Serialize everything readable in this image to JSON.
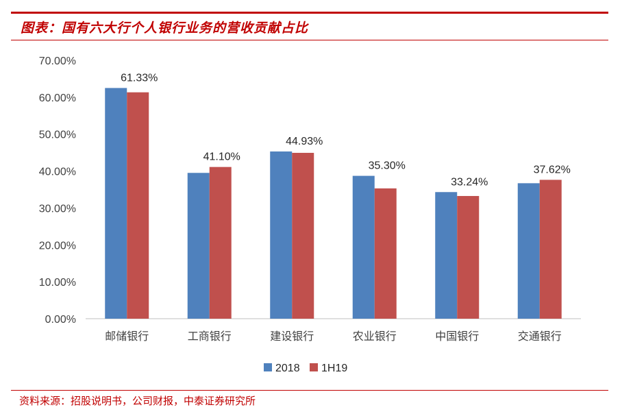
{
  "header": {
    "title": "图表：国有六大行个人银行业务的营收贡献占比"
  },
  "footer": {
    "source": "资料来源：招股说明书，公司财报，中泰证券研究所"
  },
  "chart_data": {
    "type": "bar",
    "categories": [
      "邮储银行",
      "工商银行",
      "建设银行",
      "农业银行",
      "中国银行",
      "交通银行"
    ],
    "series": [
      {
        "name": "2018",
        "color": "#4f81bd",
        "values": [
          62.5,
          39.5,
          45.3,
          38.7,
          34.3,
          36.7
        ]
      },
      {
        "name": "1H19",
        "color": "#c0504d",
        "values": [
          61.33,
          41.1,
          44.93,
          35.3,
          33.24,
          37.62
        ]
      }
    ],
    "data_labels": [
      "61.33%",
      "41.10%",
      "44.93%",
      "35.30%",
      "33.24%",
      "37.62%"
    ],
    "y_ticks": [
      "0.00%",
      "10.00%",
      "20.00%",
      "30.00%",
      "40.00%",
      "50.00%",
      "60.00%",
      "70.00%"
    ],
    "ylim": [
      0,
      70
    ],
    "grid": false,
    "legend_position": "bottom"
  }
}
